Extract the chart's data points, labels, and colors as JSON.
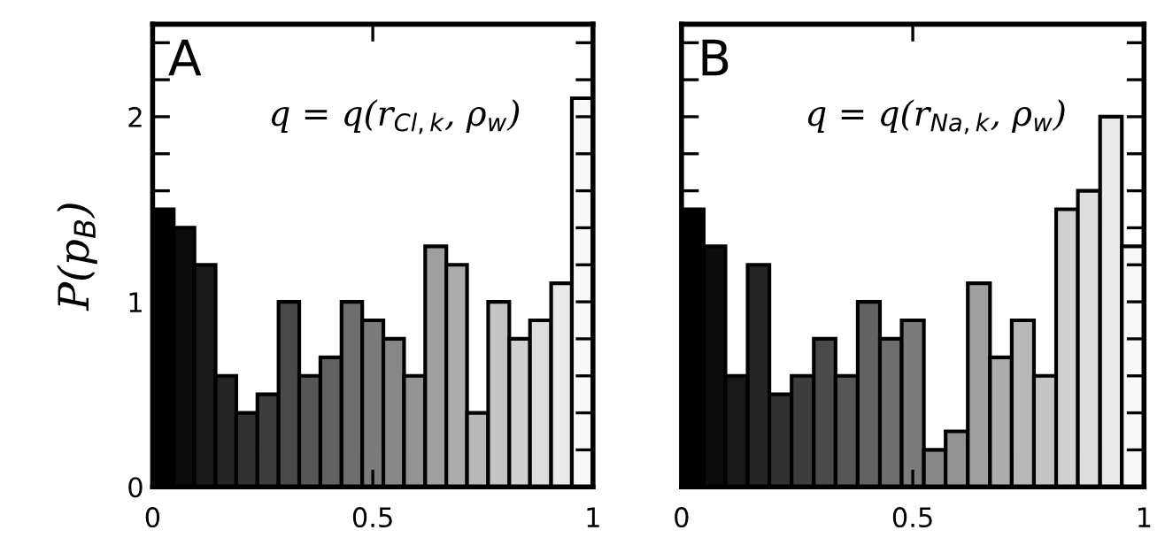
{
  "chart_data": [
    {
      "type": "histogram",
      "ylabel": "P(p$_{B}$)",
      "annotations": [
        "A",
        "q = q(r$_{Cl,k}$, ρ$_{w}$)"
      ],
      "bins": [
        0,
        0.048,
        0.095,
        0.143,
        0.19,
        0.238,
        0.286,
        0.333,
        0.381,
        0.429,
        0.476,
        0.524,
        0.571,
        0.619,
        0.667,
        0.714,
        0.762,
        0.81,
        0.857,
        0.905,
        0.952,
        1
      ],
      "values": [
        1.5,
        1.4,
        1.2,
        0.6,
        0.4,
        0.5,
        1.0,
        0.6,
        0.7,
        1.0,
        0.9,
        0.8,
        0.6,
        1.3,
        1.2,
        0.4,
        1.0,
        0.8,
        0.9,
        1.1,
        2.1
      ],
      "colors": [
        "#000000",
        "#0c0c0c",
        "#191919",
        "#252525",
        "#313131",
        "#3d3d3d",
        "#4a4a4a",
        "#565656",
        "#626262",
        "#6e6e6e",
        "#7b7b7b",
        "#878787",
        "#939393",
        "#9f9f9f",
        "#acacac",
        "#b8b8b8",
        "#c4c4c4",
        "#d0d0d0",
        "#dddddd",
        "#e9e9e9",
        "#f8f8f8"
      ],
      "xlim": [
        0,
        1
      ],
      "xticks": [
        0,
        0.5,
        1
      ],
      "ylim": [
        0,
        2.5
      ],
      "yticks": [
        0,
        {
          "value": 0.2,
          "label": null
        },
        {
          "value": 0.4,
          "label": null
        },
        {
          "value": 0.6,
          "label": null
        },
        {
          "value": 0.8,
          "label": null
        },
        1,
        {
          "value": 1.2,
          "label": null
        },
        {
          "value": 1.4,
          "label": null
        },
        {
          "value": 1.6,
          "label": null
        },
        {
          "value": 1.8,
          "label": null
        },
        2,
        {
          "value": 2.2,
          "label": null
        },
        {
          "value": 2.4,
          "label": null
        }
      ]
    },
    {
      "type": "histogram",
      "annotations": [
        "B",
        "q = q(r$_{Na,k}$, ρ$_{w}$)"
      ],
      "tick_labels": "x",
      "bins": [
        0,
        0.048,
        0.095,
        0.143,
        0.19,
        0.238,
        0.286,
        0.333,
        0.381,
        0.429,
        0.476,
        0.524,
        0.571,
        0.619,
        0.667,
        0.714,
        0.762,
        0.81,
        0.857,
        0.905,
        0.952,
        1
      ],
      "values": [
        1.5,
        1.3,
        0.6,
        1.2,
        0.5,
        0.6,
        0.8,
        0.6,
        1.0,
        0.8,
        0.9,
        0.2,
        0.3,
        1.1,
        0.7,
        0.9,
        0.6,
        1.5,
        1.6,
        2.0,
        1.3
      ],
      "colors": [
        "#000000",
        "#0c0c0c",
        "#191919",
        "#252525",
        "#313131",
        "#3d3d3d",
        "#4a4a4a",
        "#565656",
        "#626262",
        "#6e6e6e",
        "#7b7b7b",
        "#878787",
        "#939393",
        "#9f9f9f",
        "#acacac",
        "#b8b8b8",
        "#c4c4c4",
        "#d0d0d0",
        "#dddddd",
        "#e9e9e9",
        "#f8f8f8"
      ],
      "xlim": [
        0,
        1
      ],
      "xticks": [
        0,
        0.5,
        1
      ],
      "ylim": [
        0,
        2.5
      ],
      "yticks": [
        0,
        {
          "value": 0.2,
          "label": null
        },
        {
          "value": 0.4,
          "label": null
        },
        {
          "value": 0.6,
          "label": null
        },
        {
          "value": 0.8,
          "label": null
        },
        1,
        {
          "value": 1.2,
          "label": null
        },
        {
          "value": 1.4,
          "label": null
        },
        {
          "value": 1.6,
          "label": null
        },
        {
          "value": 1.8,
          "label": null
        },
        2,
        {
          "value": 2.2,
          "label": null
        },
        {
          "value": 2.4,
          "label": null
        }
      ]
    }
  ]
}
